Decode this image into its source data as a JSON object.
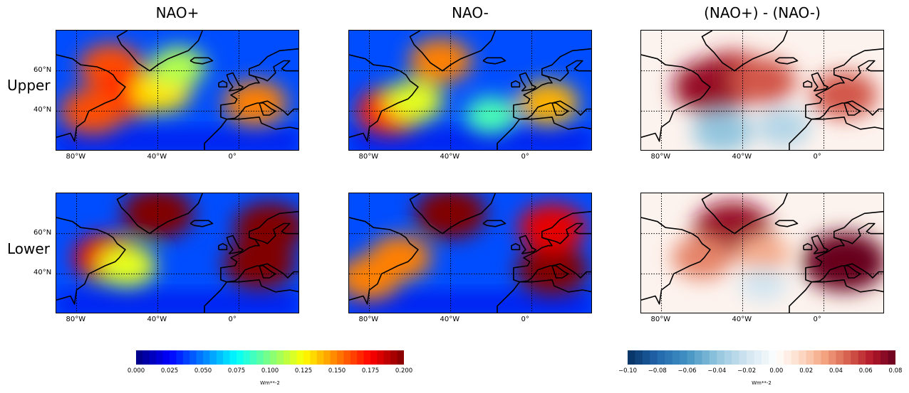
{
  "chart_data": {
    "type": "heatmap",
    "description_title": "",
    "columns": [
      "NAO+",
      "NAO-",
      "(NAO+) - (NAO-)"
    ],
    "rows": [
      "Upper",
      "Lower"
    ],
    "x_ticks": [
      "80°W",
      "40°W",
      "0°"
    ],
    "y_ticks": [
      "60°N",
      "40°N"
    ],
    "map_extent": {
      "lon": [
        -90,
        30
      ],
      "lat": [
        20,
        80
      ]
    },
    "grid": true,
    "colorbars": [
      {
        "name": "jet",
        "range": [
          0.0,
          0.2
        ],
        "ticks": [
          "0.000",
          "0.025",
          "0.050",
          "0.075",
          "0.100",
          "0.125",
          "0.150",
          "0.175",
          "0.200"
        ],
        "unit": "Wm**-2"
      },
      {
        "name": "RdBu_r",
        "range": [
          -0.1,
          0.08
        ],
        "ticks": [
          "−0.10",
          "−0.08",
          "−0.06",
          "−0.04",
          "−0.02",
          "0.00",
          "0.02",
          "0.04",
          "0.06",
          "0.08"
        ],
        "unit": "Wm**-2"
      }
    ],
    "panels": [
      {
        "row": "Upper",
        "column": "NAO+",
        "hotspots": [
          {
            "lon": -63,
            "lat": 62,
            "value": 0.16
          },
          {
            "lon": -55,
            "lat": 48,
            "value": 0.17
          },
          {
            "lon": -72,
            "lat": 40,
            "value": 0.16
          },
          {
            "lon": -38,
            "lat": 50,
            "value": 0.13
          },
          {
            "lon": 8,
            "lat": 44,
            "value": 0.15
          },
          {
            "lon": -30,
            "lat": 62,
            "value": 0.11
          }
        ]
      },
      {
        "row": "Upper",
        "column": "NAO-",
        "hotspots": [
          {
            "lon": -45,
            "lat": 65,
            "value": 0.15
          },
          {
            "lon": -70,
            "lat": 40,
            "value": 0.17
          },
          {
            "lon": -58,
            "lat": 45,
            "value": 0.12
          },
          {
            "lon": 8,
            "lat": 44,
            "value": 0.14
          },
          {
            "lon": -20,
            "lat": 38,
            "value": 0.09
          }
        ]
      },
      {
        "row": "Upper",
        "column": "(NAO+) - (NAO-)",
        "hotspots": [
          {
            "lon": -45,
            "lat": 57,
            "value": 0.06
          },
          {
            "lon": -55,
            "lat": 52,
            "value": 0.07
          },
          {
            "lon": -30,
            "lat": 55,
            "value": 0.05
          },
          {
            "lon": 10,
            "lat": 48,
            "value": 0.05
          },
          {
            "lon": -50,
            "lat": 30,
            "value": -0.04
          },
          {
            "lon": -20,
            "lat": 32,
            "value": -0.03
          }
        ]
      },
      {
        "row": "Lower",
        "column": "NAO+",
        "hotspots": [
          {
            "lon": -40,
            "lat": 70,
            "value": 0.2
          },
          {
            "lon": 10,
            "lat": 45,
            "value": 0.2
          },
          {
            "lon": -65,
            "lat": 48,
            "value": 0.18
          },
          {
            "lon": 15,
            "lat": 63,
            "value": 0.2
          },
          {
            "lon": -55,
            "lat": 44,
            "value": 0.12
          }
        ]
      },
      {
        "row": "Lower",
        "column": "NAO-",
        "hotspots": [
          {
            "lon": -40,
            "lat": 70,
            "value": 0.2
          },
          {
            "lon": 10,
            "lat": 42,
            "value": 0.2
          },
          {
            "lon": -65,
            "lat": 48,
            "value": 0.15
          },
          {
            "lon": -80,
            "lat": 38,
            "value": 0.15
          },
          {
            "lon": 10,
            "lat": 63,
            "value": 0.18
          }
        ]
      },
      {
        "row": "Lower",
        "column": "(NAO+) - (NAO-)",
        "hotspots": [
          {
            "lon": -45,
            "lat": 62,
            "value": 0.07
          },
          {
            "lon": 10,
            "lat": 46,
            "value": 0.08
          },
          {
            "lon": -30,
            "lat": 50,
            "value": 0.03
          },
          {
            "lon": -60,
            "lat": 48,
            "value": 0.04
          },
          {
            "lon": -30,
            "lat": 35,
            "value": -0.02
          }
        ]
      }
    ]
  }
}
